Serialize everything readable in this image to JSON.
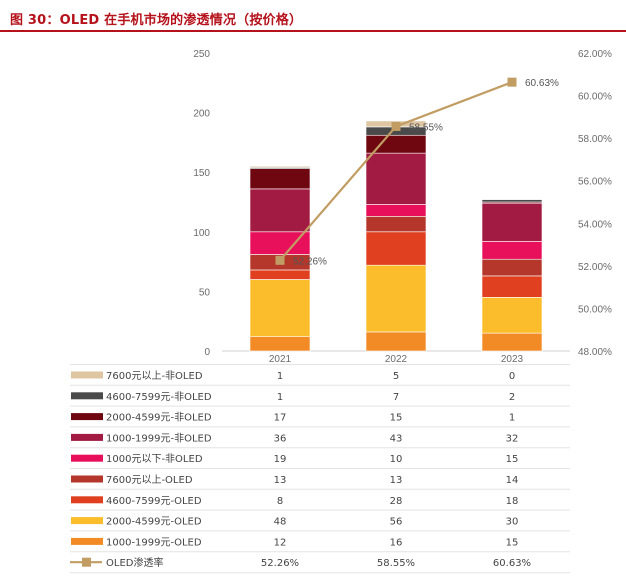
{
  "title": "图 30：OLED 在手机市场的渗透情况（按价格）",
  "chart_data": {
    "type": "bar",
    "stacked": true,
    "categories": [
      "2021",
      "2022",
      "2023"
    ],
    "y_left": {
      "ticks": [
        "0",
        "50",
        "100",
        "150",
        "200",
        "250"
      ],
      "ylim": [
        0,
        250
      ]
    },
    "y_right": {
      "ticks": [
        "48.00%",
        "50.00%",
        "52.00%",
        "54.00%",
        "56.00%",
        "58.00%",
        "60.00%",
        "62.00%"
      ],
      "ylim": [
        48,
        62
      ]
    },
    "series": [
      {
        "name": "1000-1999元-OLED",
        "color": "#f28a26",
        "values": [
          12,
          16,
          15
        ]
      },
      {
        "name": "2000-4599元-OLED",
        "color": "#fbbd2c",
        "values": [
          48,
          56,
          30
        ]
      },
      {
        "name": "4600-7599元-OLED",
        "color": "#e0401f",
        "values": [
          8,
          28,
          18
        ]
      },
      {
        "name": "7600元以上-OLED",
        "color": "#b5372b",
        "values": [
          13,
          13,
          14
        ]
      },
      {
        "name": "1000元以下-非OLED",
        "color": "#e8105a",
        "values": [
          19,
          10,
          15
        ]
      },
      {
        "name": "1000-1999元-非OLED",
        "color": "#a21b42",
        "values": [
          36,
          43,
          32
        ]
      },
      {
        "name": "2000-4599元-非OLED",
        "color": "#6f0710",
        "values": [
          17,
          15,
          1
        ]
      },
      {
        "name": "4600-7599元-非OLED",
        "color": "#4a4a4a",
        "values": [
          1,
          7,
          2
        ]
      },
      {
        "name": "7600元以上-非OLED",
        "color": "#dfc6a3",
        "values": [
          1,
          5,
          0
        ]
      }
    ],
    "line": {
      "name": "OLED渗透率",
      "color": "#c29d63",
      "values": [
        52.26,
        58.55,
        60.63
      ],
      "labels": [
        "52.26%",
        "58.55%",
        "60.63%"
      ]
    },
    "table_rows_order": [
      "7600元以上-非OLED",
      "4600-7599元-非OLED",
      "2000-4599元-非OLED",
      "1000-1999元-非OLED",
      "1000元以下-非OLED",
      "7600元以上-OLED",
      "4600-7599元-OLED",
      "2000-4599元-OLED",
      "1000-1999元-OLED",
      "OLED渗透率"
    ]
  }
}
